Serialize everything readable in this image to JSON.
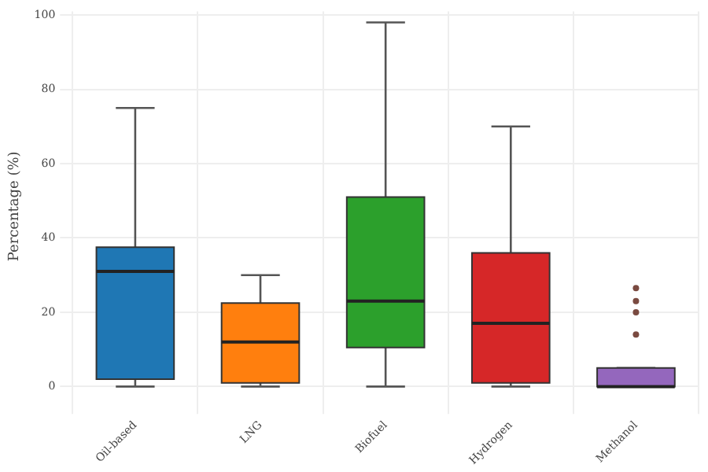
{
  "chart_data": {
    "type": "box",
    "ylabel": "Percentage (%)",
    "categories": [
      "Oil-based",
      "LNG",
      "Biofuel",
      "Hydrogen",
      "Methanol"
    ],
    "colors": [
      "#1f77b4",
      "#ff7f0e",
      "#2ca02c",
      "#d62728",
      "#9467bd"
    ],
    "boxes": [
      {
        "low": 0,
        "q1": 2,
        "median": 31,
        "q3": 37.5,
        "high": 75
      },
      {
        "low": 0,
        "q1": 1,
        "median": 12,
        "q3": 22.5,
        "high": 30
      },
      {
        "low": 0,
        "q1": 10.5,
        "median": 23,
        "q3": 51,
        "high": 98
      },
      {
        "low": 0,
        "q1": 1,
        "median": 17,
        "q3": 36,
        "high": 70
      },
      {
        "low": 0,
        "q1": 0,
        "median": 0,
        "q3": 5,
        "high": 5,
        "outliers": [
          14,
          20,
          23,
          26.5
        ]
      }
    ],
    "ylim": [
      -4,
      101
    ],
    "yticks": [
      0,
      20,
      40,
      60,
      80,
      100
    ],
    "grid": true,
    "legend": false
  }
}
